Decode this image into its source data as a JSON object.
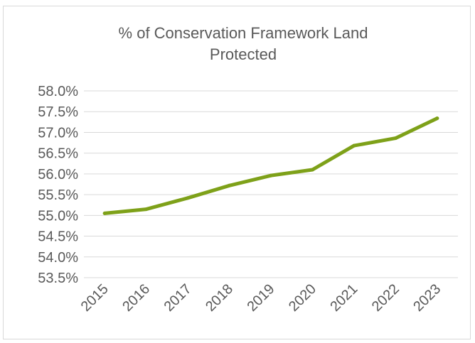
{
  "chart_data": {
    "type": "line",
    "title_lines": [
      "% of Conservation Framework Land",
      "Protected"
    ],
    "xlabel": "",
    "ylabel": "",
    "categories": [
      "2015",
      "2016",
      "2017",
      "2018",
      "2019",
      "2020",
      "2021",
      "2022",
      "2023"
    ],
    "series": [
      {
        "values": [
          55.05,
          55.15,
          55.42,
          55.72,
          55.96,
          56.1,
          56.68,
          56.86,
          57.34
        ],
        "color": "#7ea119"
      }
    ],
    "ylim": [
      53.5,
      58.0
    ],
    "y_ticks": [
      "58.0%",
      "57.5%",
      "57.0%",
      "56.5%",
      "56.0%",
      "55.5%",
      "55.0%",
      "54.5%",
      "54.0%",
      "53.5%"
    ],
    "y_tick_values": [
      58.0,
      57.5,
      57.0,
      56.5,
      56.0,
      55.5,
      55.0,
      54.5,
      54.0,
      53.5
    ],
    "grid": true,
    "legend": "none",
    "x_label_rotation_deg": -45
  }
}
